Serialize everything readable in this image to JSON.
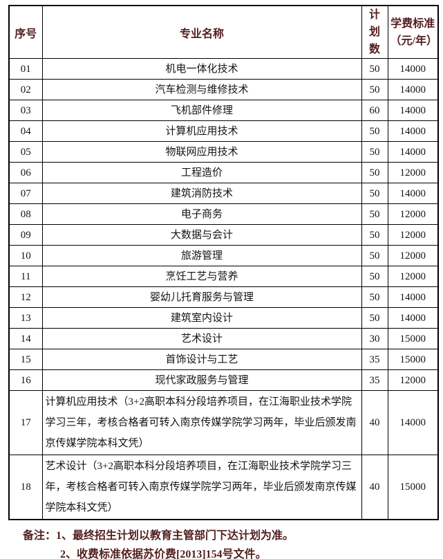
{
  "colors": {
    "border": "#000000",
    "header_text": "#531e1e",
    "body_text": "#141414",
    "note_text": "#531e1e",
    "background": "#ffffff"
  },
  "table": {
    "header": {
      "no": "序号",
      "major": "专业名称",
      "plan_line1": "计划",
      "plan_line2": "数",
      "fee_line1": "学费标准",
      "fee_line2": "（元/年）"
    },
    "rows": [
      {
        "no": "01",
        "major": "机电一体化技术",
        "plan": "50",
        "fee": "14000"
      },
      {
        "no": "02",
        "major": "汽车检测与维修技术",
        "plan": "50",
        "fee": "14000"
      },
      {
        "no": "03",
        "major": "飞机部件修理",
        "plan": "60",
        "fee": "14000"
      },
      {
        "no": "04",
        "major": "计算机应用技术",
        "plan": "50",
        "fee": "14000"
      },
      {
        "no": "05",
        "major": "物联网应用技术",
        "plan": "50",
        "fee": "14000"
      },
      {
        "no": "06",
        "major": "工程造价",
        "plan": "50",
        "fee": "12000"
      },
      {
        "no": "07",
        "major": "建筑消防技术",
        "plan": "50",
        "fee": "14000"
      },
      {
        "no": "08",
        "major": "电子商务",
        "plan": "50",
        "fee": "12000"
      },
      {
        "no": "09",
        "major": "大数据与会计",
        "plan": "50",
        "fee": "12000"
      },
      {
        "no": "10",
        "major": "旅游管理",
        "plan": "50",
        "fee": "12000"
      },
      {
        "no": "11",
        "major": "烹饪工艺与营养",
        "plan": "50",
        "fee": "12000"
      },
      {
        "no": "12",
        "major": "婴幼儿托育服务与管理",
        "plan": "50",
        "fee": "14000"
      },
      {
        "no": "13",
        "major": "建筑室内设计",
        "plan": "50",
        "fee": "14000"
      },
      {
        "no": "14",
        "major": "艺术设计",
        "plan": "30",
        "fee": "15000"
      },
      {
        "no": "15",
        "major": "首饰设计与工艺",
        "plan": "35",
        "fee": "15000"
      },
      {
        "no": "16",
        "major": "现代家政服务与管理",
        "plan": "35",
        "fee": "12000"
      },
      {
        "no": "17",
        "major": "计算机应用技术（3+2高职本科分段培养项目，在江海职业技术学院学习三年，考核合格者可转入南京传媒学院学习两年，毕业后颁发南京传媒学院本科文凭）",
        "plan": "40",
        "fee": "14000"
      },
      {
        "no": "18",
        "major": "艺术设计（3+2高职本科分段培养项目，在江海职业技术学院学习三年，考核合格者可转入南京传媒学院学习两年，毕业后颁发南京传媒学院本科文凭）",
        "plan": "40",
        "fee": "15000"
      }
    ]
  },
  "notes": {
    "label": "备注：",
    "items": [
      "1、最终招生计划以教育主管部门下达计划为准。",
      "2、收费标准依据苏价费[2013]154号文件。"
    ]
  }
}
